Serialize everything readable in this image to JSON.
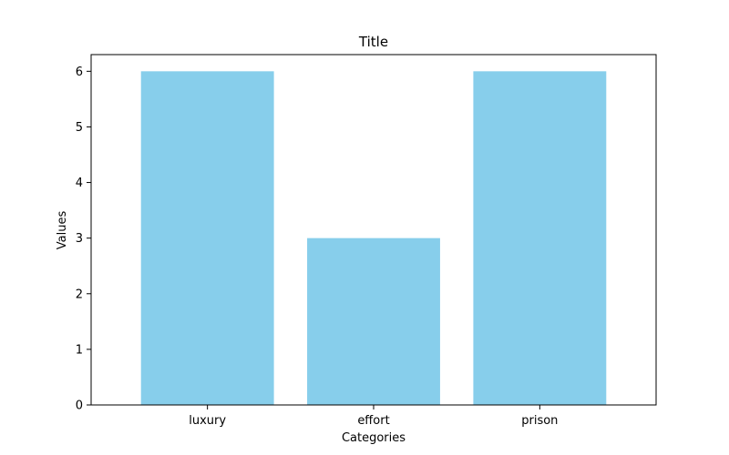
{
  "chart_data": {
    "type": "bar",
    "title": "Title",
    "xlabel": "Categories",
    "ylabel": "Values",
    "categories": [
      "luxury",
      "effort",
      "prison"
    ],
    "values": [
      6,
      3,
      6
    ],
    "ylim": [
      0,
      6.3
    ],
    "yticks": [
      0,
      1,
      2,
      3,
      4,
      5,
      6
    ],
    "grid": false,
    "bar_color": "#87ceeb"
  }
}
